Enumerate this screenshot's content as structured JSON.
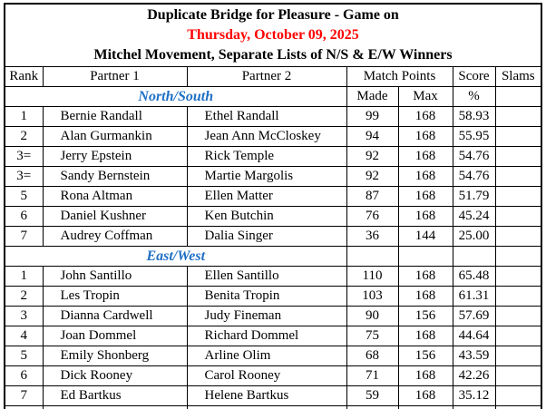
{
  "title": {
    "line1": "Duplicate Bridge for Pleasure - Game on",
    "date": "Thursday, October 09, 2025",
    "subtitle": "Mitchel Movement, Separate Lists of N/S & E/W Winners"
  },
  "table": {
    "headers": {
      "rank": "Rank",
      "partner1": "Partner 1",
      "partner2": "Partner 2",
      "match_points": "Match Points",
      "score": "Score",
      "slams": "Slams"
    },
    "subheader": {
      "made": "Made",
      "max": "Max",
      "percent": "%"
    },
    "sections": [
      {
        "label": "North/South",
        "shows_subheader": true,
        "rows": [
          {
            "rank": "1",
            "partner1": "Bernie Randall",
            "partner2": "Ethel Randall",
            "made": "99",
            "max": "168",
            "score": "58.93",
            "slams": ""
          },
          {
            "rank": "2",
            "partner1": "Alan Gurmankin",
            "partner2": "Jean Ann McCloskey",
            "made": "94",
            "max": "168",
            "score": "55.95",
            "slams": ""
          },
          {
            "rank": "3=",
            "partner1": "Jerry Epstein",
            "partner2": "Rick Temple",
            "made": "92",
            "max": "168",
            "score": "54.76",
            "slams": ""
          },
          {
            "rank": "3=",
            "partner1": "Sandy Bernstein",
            "partner2": "Martie Margolis",
            "made": "92",
            "max": "168",
            "score": "54.76",
            "slams": ""
          },
          {
            "rank": "5",
            "partner1": "Rona Altman",
            "partner2": "Ellen Matter",
            "made": "87",
            "max": "168",
            "score": "51.79",
            "slams": ""
          },
          {
            "rank": "6",
            "partner1": "Daniel Kushner",
            "partner2": "Ken Butchin",
            "made": "76",
            "max": "168",
            "score": "45.24",
            "slams": ""
          },
          {
            "rank": "7",
            "partner1": "Audrey Coffman",
            "partner2": "Dalia Singer",
            "made": "36",
            "max": "144",
            "score": "25.00",
            "slams": ""
          }
        ]
      },
      {
        "label": "East/West",
        "shows_subheader": false,
        "rows": [
          {
            "rank": "1",
            "partner1": "John Santillo",
            "partner2": "Ellen Santillo",
            "made": "110",
            "max": "168",
            "score": "65.48",
            "slams": ""
          },
          {
            "rank": "2",
            "partner1": "Les Tropin",
            "partner2": "Benita Tropin",
            "made": "103",
            "max": "168",
            "score": "61.31",
            "slams": ""
          },
          {
            "rank": "3",
            "partner1": "Dianna Cardwell",
            "partner2": "Judy Fineman",
            "made": "90",
            "max": "156",
            "score": "57.69",
            "slams": ""
          },
          {
            "rank": "4",
            "partner1": "Joan Dommel",
            "partner2": "Richard Dommel",
            "made": "75",
            "max": "168",
            "score": "44.64",
            "slams": ""
          },
          {
            "rank": "5",
            "partner1": "Emily Shonberg",
            "partner2": "Arline Olim",
            "made": "68",
            "max": "156",
            "score": "43.59",
            "slams": ""
          },
          {
            "rank": "6",
            "partner1": "Dick Rooney",
            "partner2": "Carol Rooney",
            "made": "71",
            "max": "168",
            "score": "42.26",
            "slams": ""
          },
          {
            "rank": "7",
            "partner1": "Ed Bartkus",
            "partner2": "Helene Bartkus",
            "made": "59",
            "max": "168",
            "score": "35.12",
            "slams": ""
          }
        ]
      }
    ]
  },
  "colors": {
    "date_red": "#FF0000",
    "section_blue": "#1F6FC4",
    "border_black": "#000000",
    "background": "#FFFFFF"
  }
}
